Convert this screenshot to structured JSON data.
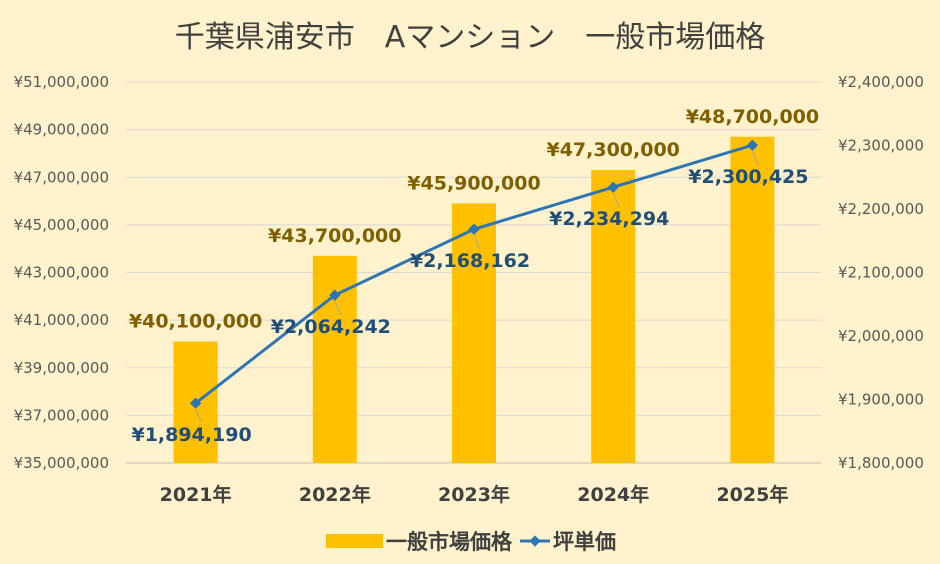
{
  "chart_data": {
    "type": "bar+line",
    "title": "千葉県浦安市　Aマンション　一般市場価格",
    "categories": [
      "2021年",
      "2022年",
      "2023年",
      "2024年",
      "2025年"
    ],
    "series": [
      {
        "name": "一般市場価格",
        "type": "bar",
        "axis": "left",
        "values": [
          40100000,
          43700000,
          45900000,
          47300000,
          48700000
        ],
        "labels": [
          "¥40,100,000",
          "¥43,700,000",
          "¥45,900,000",
          "¥47,300,000",
          "¥48,700,000"
        ],
        "color": "#ffc000"
      },
      {
        "name": "坪単価",
        "type": "line",
        "axis": "right",
        "values": [
          1894190,
          2064242,
          2168162,
          2234294,
          2300425
        ],
        "labels": [
          "¥1,894,190",
          "¥2,064,242",
          "¥2,168,162",
          "¥2,234,294",
          "¥2,300,425"
        ],
        "color": "#2e75b6"
      }
    ],
    "y_left": {
      "min": 35000000,
      "max": 51000000,
      "ticks": [
        "¥35,000,000",
        "¥37,000,000",
        "¥39,000,000",
        "¥41,000,000",
        "¥43,000,000",
        "¥45,000,000",
        "¥47,000,000",
        "¥49,000,000",
        "¥51,000,000"
      ]
    },
    "y_right": {
      "min": 1800000,
      "max": 2400000,
      "ticks": [
        "¥1,800,000",
        "¥1,900,000",
        "¥2,000,000",
        "¥2,100,000",
        "¥2,200,000",
        "¥2,300,000",
        "¥2,400,000"
      ]
    },
    "grid": true,
    "legend_position": "bottom",
    "background_color": "#fff2cc"
  }
}
